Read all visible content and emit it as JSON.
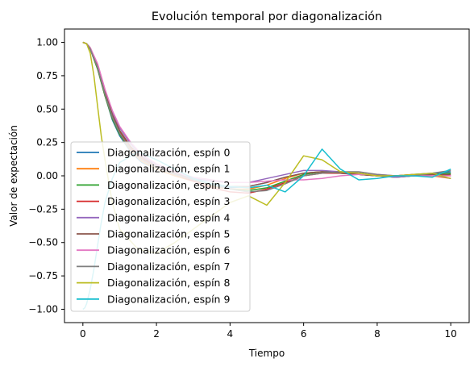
{
  "chart_data": {
    "type": "line",
    "title": "Evolución temporal por diagonalización",
    "xlabel": "Tiempo",
    "ylabel": "Valor de expectación",
    "xlim": [
      -0.5,
      10.5
    ],
    "ylim": [
      -1.1,
      1.1
    ],
    "x_ticks": [
      0,
      2,
      4,
      6,
      8,
      10
    ],
    "x_tick_labels": [
      "0",
      "2",
      "4",
      "6",
      "8",
      "10"
    ],
    "y_ticks": [
      1.0,
      0.75,
      0.5,
      0.25,
      0.0,
      -0.25,
      -0.5,
      -0.75,
      -1.0
    ],
    "y_tick_labels": [
      "1.00",
      "0.75",
      "0.50",
      "0.25",
      "0.00",
      "−0.25",
      "−0.50",
      "−0.75",
      "−1.00"
    ],
    "grid": false,
    "legend_position": "lower-left",
    "series": [
      {
        "name": "Diagonalización, espín 0",
        "color": "#1f77b4",
        "x": [
          0,
          0.1,
          0.2,
          0.4,
          0.6,
          0.8,
          1.0,
          1.3,
          1.6,
          2.0,
          2.5,
          3.0,
          3.5,
          4.0,
          4.5,
          5.0,
          5.5,
          6.0,
          6.5,
          7.0,
          7.5,
          8.0,
          8.5,
          9.0,
          9.5,
          10.0
        ],
        "y": [
          1.0,
          0.99,
          0.95,
          0.8,
          0.6,
          0.42,
          0.3,
          0.18,
          0.1,
          0.05,
          0.0,
          -0.04,
          -0.07,
          -0.09,
          -0.08,
          -0.05,
          -0.01,
          0.02,
          0.03,
          0.02,
          0.01,
          0.0,
          0.0,
          0.01,
          0.02,
          0.03
        ]
      },
      {
        "name": "Diagonalización, espín 1",
        "color": "#ff7f0e",
        "x": [
          0,
          0.1,
          0.2,
          0.4,
          0.6,
          0.8,
          1.0,
          1.3,
          1.6,
          2.0,
          2.5,
          3.0,
          3.5,
          4.0,
          4.5,
          5.0,
          5.5,
          6.0,
          6.5,
          7.0,
          7.5,
          8.0,
          8.5,
          9.0,
          9.5,
          10.0
        ],
        "y": [
          1.0,
          0.99,
          0.95,
          0.8,
          0.6,
          0.43,
          0.31,
          0.19,
          0.11,
          0.05,
          0.0,
          -0.04,
          -0.08,
          -0.1,
          -0.1,
          -0.07,
          -0.02,
          0.02,
          0.03,
          0.03,
          0.02,
          0.0,
          -0.01,
          0.0,
          0.0,
          -0.02
        ]
      },
      {
        "name": "Diagonalización, espín 2",
        "color": "#2ca02c",
        "x": [
          0,
          0.1,
          0.2,
          0.4,
          0.6,
          0.8,
          1.0,
          1.3,
          1.6,
          2.0,
          2.5,
          3.0,
          3.5,
          4.0,
          4.5,
          5.0,
          5.5,
          6.0,
          6.5,
          7.0,
          7.5,
          8.0,
          8.5,
          9.0,
          9.5,
          10.0
        ],
        "y": [
          1.0,
          0.99,
          0.95,
          0.8,
          0.6,
          0.43,
          0.31,
          0.2,
          0.12,
          0.06,
          0.01,
          -0.03,
          -0.07,
          -0.1,
          -0.11,
          -0.09,
          -0.04,
          0.01,
          0.03,
          0.03,
          0.02,
          0.0,
          -0.01,
          0.0,
          0.01,
          0.02
        ]
      },
      {
        "name": "Diagonalización, espín 3",
        "color": "#d62728",
        "x": [
          0,
          0.1,
          0.2,
          0.4,
          0.6,
          0.8,
          1.0,
          1.3,
          1.6,
          2.0,
          2.5,
          3.0,
          3.5,
          4.0,
          4.5,
          5.0,
          5.5,
          6.0,
          6.5,
          7.0,
          7.5,
          8.0,
          8.5,
          9.0,
          9.5,
          10.0
        ],
        "y": [
          1.0,
          0.99,
          0.96,
          0.82,
          0.62,
          0.45,
          0.33,
          0.21,
          0.13,
          0.07,
          0.01,
          -0.04,
          -0.09,
          -0.12,
          -0.13,
          -0.1,
          -0.05,
          0.0,
          0.02,
          0.02,
          0.01,
          0.0,
          0.0,
          0.01,
          0.01,
          0.0
        ]
      },
      {
        "name": "Diagonalización, espín 4",
        "color": "#9467bd",
        "x": [
          0,
          0.1,
          0.2,
          0.4,
          0.6,
          0.8,
          1.0,
          1.3,
          1.6,
          2.0,
          2.5,
          3.0,
          3.5,
          4.0,
          4.5,
          5.0,
          5.5,
          6.0,
          6.5,
          7.0,
          7.5,
          8.0,
          8.5,
          9.0,
          9.5,
          10.0
        ],
        "y": [
          1.0,
          0.99,
          0.96,
          0.83,
          0.64,
          0.48,
          0.36,
          0.24,
          0.15,
          0.08,
          0.02,
          -0.02,
          -0.04,
          -0.05,
          -0.05,
          -0.02,
          0.01,
          0.04,
          0.04,
          0.03,
          0.02,
          0.0,
          -0.01,
          0.0,
          0.01,
          -0.02
        ]
      },
      {
        "name": "Diagonalización, espín 5",
        "color": "#8c564b",
        "x": [
          0,
          0.1,
          0.2,
          0.4,
          0.6,
          0.8,
          1.0,
          1.3,
          1.6,
          2.0,
          2.5,
          3.0,
          3.5,
          4.0,
          4.5,
          5.0,
          5.5,
          6.0,
          6.5,
          7.0,
          7.5,
          8.0,
          8.5,
          9.0,
          9.5,
          10.0
        ],
        "y": [
          1.0,
          0.99,
          0.96,
          0.82,
          0.63,
          0.46,
          0.34,
          0.22,
          0.14,
          0.07,
          0.02,
          -0.03,
          -0.06,
          -0.08,
          -0.08,
          -0.05,
          -0.01,
          0.02,
          0.03,
          0.02,
          0.01,
          0.0,
          0.0,
          0.0,
          0.01,
          0.01
        ]
      },
      {
        "name": "Diagonalización, espín 6",
        "color": "#e377c2",
        "x": [
          0,
          0.1,
          0.2,
          0.4,
          0.6,
          0.8,
          1.0,
          1.3,
          1.6,
          2.0,
          2.5,
          3.0,
          3.5,
          4.0,
          4.5,
          5.0,
          5.5,
          6.0,
          6.5,
          7.0,
          7.5,
          8.0,
          8.5,
          9.0,
          9.5,
          10.0
        ],
        "y": [
          1.0,
          0.99,
          0.96,
          0.84,
          0.65,
          0.49,
          0.37,
          0.25,
          0.16,
          0.09,
          0.03,
          -0.01,
          -0.03,
          -0.05,
          -0.05,
          -0.04,
          -0.03,
          -0.03,
          -0.02,
          0.0,
          0.01,
          0.01,
          0.0,
          0.0,
          0.0,
          0.0
        ]
      },
      {
        "name": "Diagonalización, espín 7",
        "color": "#7f7f7f",
        "x": [
          0,
          0.1,
          0.2,
          0.4,
          0.6,
          0.8,
          1.0,
          1.3,
          1.6,
          2.0,
          2.5,
          3.0,
          3.5,
          4.0,
          4.5,
          5.0,
          5.5,
          6.0,
          6.5,
          7.0,
          7.5,
          8.0,
          8.5,
          9.0,
          9.5,
          10.0
        ],
        "y": [
          1.0,
          0.99,
          0.95,
          0.81,
          0.61,
          0.44,
          0.32,
          0.2,
          0.12,
          0.06,
          0.01,
          -0.03,
          -0.07,
          -0.1,
          -0.12,
          -0.11,
          -0.06,
          0.0,
          0.02,
          0.03,
          0.03,
          0.01,
          0.0,
          0.0,
          0.02,
          0.04
        ]
      },
      {
        "name": "Diagonalización, espín 8",
        "color": "#bcbd22",
        "x": [
          0,
          0.1,
          0.2,
          0.3,
          0.4,
          0.5,
          0.6,
          0.8,
          1.0,
          1.5,
          2.0,
          2.5,
          3.0,
          3.5,
          4.0,
          4.5,
          5.0,
          5.5,
          6.0,
          6.5,
          7.0,
          7.5,
          8.0,
          8.5,
          9.0,
          9.5,
          10.0
        ],
        "y": [
          1.0,
          0.99,
          0.92,
          0.75,
          0.52,
          0.3,
          0.12,
          -0.2,
          -0.4,
          -0.55,
          -0.58,
          -0.5,
          -0.4,
          -0.3,
          -0.2,
          -0.15,
          -0.22,
          -0.05,
          0.15,
          0.12,
          0.03,
          0.02,
          0.0,
          0.0,
          0.01,
          0.02,
          -0.02
        ]
      },
      {
        "name": "Diagonalización, espín 9",
        "color": "#17becf",
        "x": [
          0,
          0.05,
          0.1,
          0.2,
          0.3,
          0.4,
          0.5,
          0.6,
          0.8,
          1.0,
          1.5,
          2.0,
          2.5,
          3.0,
          3.5,
          4.0,
          4.5,
          5.0,
          5.5,
          6.0,
          6.5,
          7.0,
          7.5,
          8.0,
          8.5,
          9.0,
          9.5,
          10.0
        ],
        "y": [
          -1.0,
          -0.99,
          -0.96,
          -0.85,
          -0.7,
          -0.52,
          -0.35,
          -0.2,
          -0.02,
          0.1,
          0.18,
          0.12,
          0.05,
          -0.02,
          -0.06,
          -0.08,
          -0.09,
          -0.07,
          -0.12,
          0.0,
          0.2,
          0.05,
          -0.03,
          -0.02,
          0.0,
          0.0,
          -0.01,
          0.05
        ]
      }
    ]
  }
}
